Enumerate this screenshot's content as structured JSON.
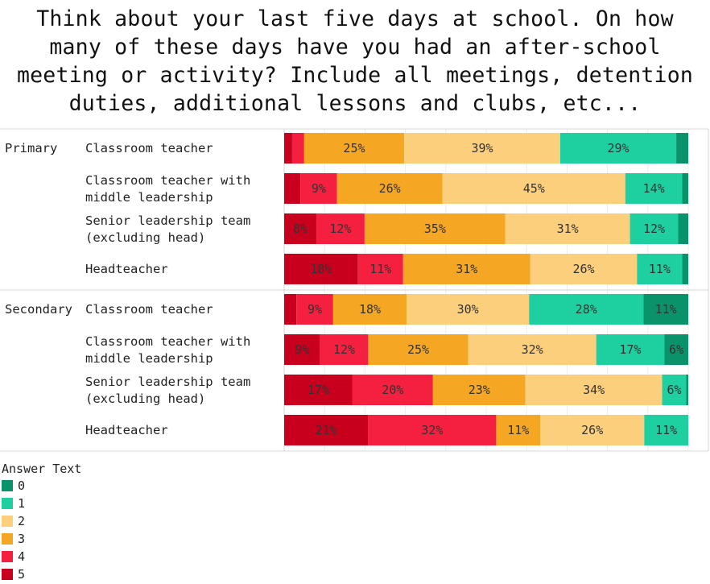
{
  "title_lines": [
    "Think about your last five days at school. On how",
    "many of these days have you had an after-school",
    "meeting or activity? Include all meetings, detention",
    "duties, additional lessons and clubs, etc..."
  ],
  "colors": {
    "5": "#c8001e",
    "4": "#f5203f",
    "3": "#f5a623",
    "2": "#fccf7d",
    "1": "#1ecfa0",
    "0": "#0a936b"
  },
  "chart_data": {
    "type": "bar",
    "orientation": "horizontal",
    "stacked": true,
    "normalized": true,
    "legend_title": "Answer Text",
    "legend_placement": "bottom-left",
    "stack_order": [
      "5",
      "4",
      "3",
      "2",
      "1",
      "0"
    ],
    "groups": [
      {
        "name": "Primary",
        "rows": [
          {
            "label": [
              "Classroom teacher"
            ],
            "values": {
              "5": 2,
              "4": 3,
              "3": 25,
              "2": 39,
              "1": 29,
              "0": 3
            }
          },
          {
            "label": [
              "Classroom teacher with",
              "middle leadership"
            ],
            "values": {
              "5": 4,
              "4": 9,
              "3": 26,
              "2": 45,
              "1": 14,
              "0": 1.5
            }
          },
          {
            "label": [
              "Senior leadership team",
              "(excluding head)"
            ],
            "values": {
              "5": 8,
              "4": 12,
              "3": 35,
              "2": 31,
              "1": 12,
              "0": 2.5
            }
          },
          {
            "label": [
              "Headteacher"
            ],
            "values": {
              "5": 18,
              "4": 11,
              "3": 31,
              "2": 26,
              "1": 11,
              "0": 1.5
            }
          }
        ]
      },
      {
        "name": "Secondary",
        "rows": [
          {
            "label": [
              "Classroom teacher"
            ],
            "values": {
              "5": 3,
              "4": 9,
              "3": 18,
              "2": 30,
              "1": 28,
              "0": 11
            }
          },
          {
            "label": [
              "Classroom teacher with",
              "middle leadership"
            ],
            "values": {
              "5": 9,
              "4": 12,
              "3": 25,
              "2": 32,
              "1": 17,
              "0": 6
            }
          },
          {
            "label": [
              "Senior leadership team",
              "(excluding head)"
            ],
            "values": {
              "5": 17,
              "4": 20,
              "3": 23,
              "2": 34,
              "1": 6,
              "0": 0.5
            }
          },
          {
            "label": [
              "Headteacher"
            ],
            "values": {
              "5": 21,
              "4": 32,
              "3": 11,
              "2": 26,
              "1": 11,
              "0": 0
            }
          }
        ]
      }
    ],
    "data_labels_min_percent": 5,
    "gridlines": "vertical"
  },
  "legend": {
    "title": "Answer Text",
    "items": [
      "0",
      "1",
      "2",
      "3",
      "4",
      "5"
    ]
  }
}
